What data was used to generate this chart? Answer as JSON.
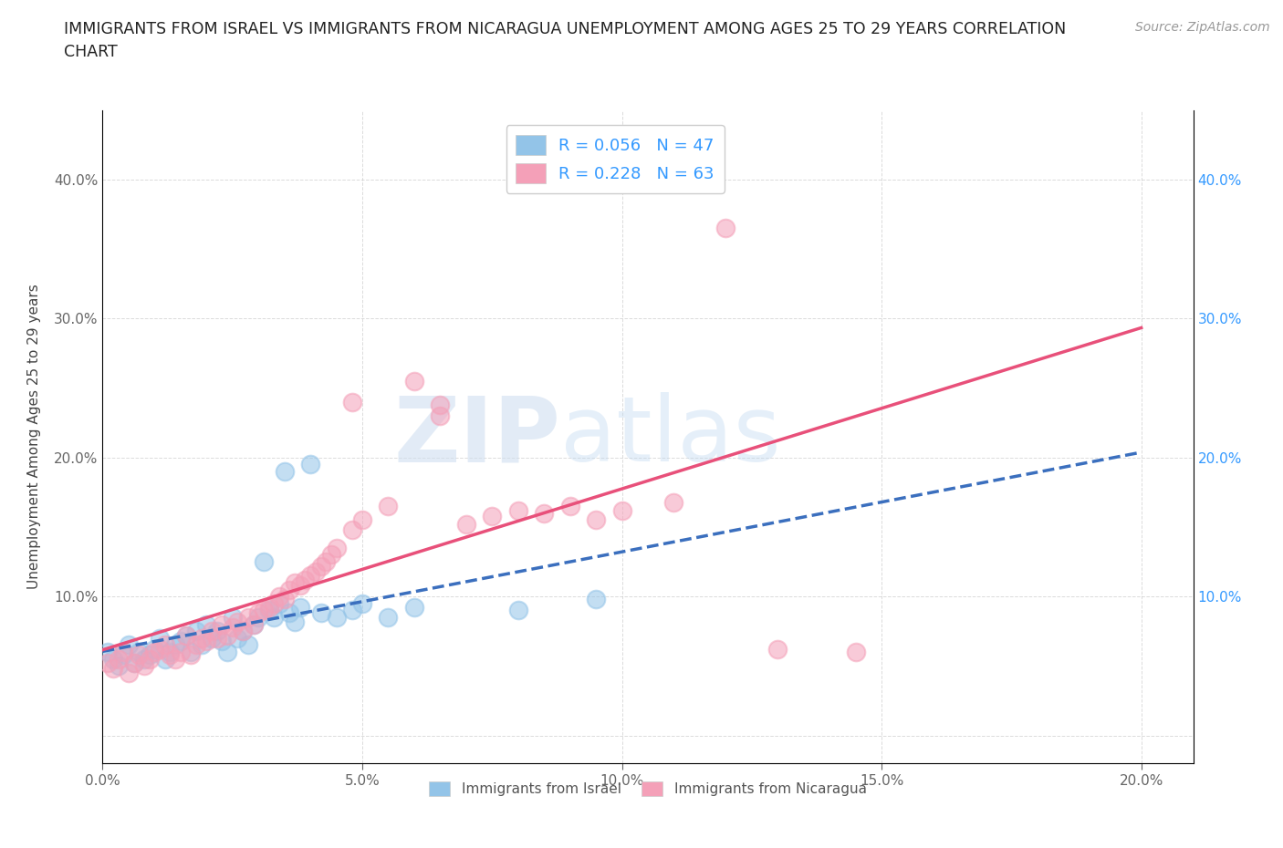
{
  "title": "IMMIGRANTS FROM ISRAEL VS IMMIGRANTS FROM NICARAGUA UNEMPLOYMENT AMONG AGES 25 TO 29 YEARS CORRELATION\nCHART",
  "source": "Source: ZipAtlas.com",
  "ylabel": "Unemployment Among Ages 25 to 29 years",
  "watermark_zip": "ZIP",
  "watermark_atlas": "atlas",
  "xlim": [
    0.0,
    0.21
  ],
  "ylim": [
    -0.02,
    0.45
  ],
  "xticks": [
    0.0,
    0.05,
    0.1,
    0.15,
    0.2
  ],
  "yticks": [
    0.0,
    0.1,
    0.2,
    0.3,
    0.4
  ],
  "xtick_labels": [
    "0.0%",
    "5.0%",
    "10.0%",
    "15.0%",
    "20.0%"
  ],
  "ytick_labels_left": [
    "",
    "10.0%",
    "20.0%",
    "30.0%",
    "40.0%"
  ],
  "ytick_labels_right": [
    "",
    "10.0%",
    "20.0%",
    "30.0%",
    "40.0%"
  ],
  "legend_label_1": "Immigrants from Israel",
  "legend_label_2": "Immigrants from Nicaragua",
  "israel_color": "#93c4e8",
  "nicaragua_color": "#f4a0b8",
  "israel_line_color": "#3b6fbe",
  "nicaragua_line_color": "#e8507a",
  "R_israel": 0.056,
  "N_israel": 47,
  "R_nicaragua": 0.228,
  "N_nicaragua": 63,
  "background_color": "#ffffff",
  "grid_color": "#cccccc",
  "title_color": "#222222",
  "axis_label_color": "#444444",
  "tick_color": "#666666",
  "right_tick_color": "#3399ff",
  "israel_scatter": {
    "x": [
      0.001,
      0.002,
      0.003,
      0.004,
      0.005,
      0.006,
      0.007,
      0.008,
      0.009,
      0.01,
      0.011,
      0.012,
      0.013,
      0.014,
      0.015,
      0.016,
      0.017,
      0.018,
      0.019,
      0.02,
      0.021,
      0.022,
      0.023,
      0.024,
      0.025,
      0.026,
      0.027,
      0.028,
      0.029,
      0.03,
      0.031,
      0.032,
      0.033,
      0.034,
      0.035,
      0.036,
      0.037,
      0.038,
      0.04,
      0.042,
      0.045,
      0.048,
      0.05,
      0.055,
      0.06,
      0.08,
      0.095
    ],
    "y": [
      0.06,
      0.055,
      0.05,
      0.058,
      0.065,
      0.052,
      0.06,
      0.055,
      0.058,
      0.062,
      0.07,
      0.055,
      0.06,
      0.065,
      0.068,
      0.072,
      0.06,
      0.075,
      0.065,
      0.08,
      0.07,
      0.075,
      0.068,
      0.06,
      0.085,
      0.07,
      0.075,
      0.065,
      0.08,
      0.085,
      0.125,
      0.09,
      0.085,
      0.095,
      0.19,
      0.088,
      0.082,
      0.092,
      0.195,
      0.088,
      0.085,
      0.09,
      0.095,
      0.085,
      0.092,
      0.09,
      0.098
    ]
  },
  "nicaragua_scatter": {
    "x": [
      0.001,
      0.002,
      0.003,
      0.004,
      0.005,
      0.006,
      0.007,
      0.008,
      0.009,
      0.01,
      0.011,
      0.012,
      0.013,
      0.014,
      0.015,
      0.016,
      0.017,
      0.018,
      0.019,
      0.02,
      0.021,
      0.022,
      0.023,
      0.024,
      0.025,
      0.026,
      0.027,
      0.028,
      0.029,
      0.03,
      0.031,
      0.032,
      0.033,
      0.034,
      0.035,
      0.036,
      0.037,
      0.038,
      0.039,
      0.04,
      0.041,
      0.042,
      0.043,
      0.044,
      0.045,
      0.048,
      0.05,
      0.055,
      0.06,
      0.065,
      0.07,
      0.075,
      0.08,
      0.085,
      0.09,
      0.095,
      0.1,
      0.11,
      0.12,
      0.145,
      0.048,
      0.065,
      0.13
    ],
    "y": [
      0.052,
      0.048,
      0.055,
      0.06,
      0.045,
      0.052,
      0.058,
      0.05,
      0.055,
      0.06,
      0.062,
      0.065,
      0.058,
      0.055,
      0.06,
      0.072,
      0.058,
      0.065,
      0.07,
      0.068,
      0.075,
      0.07,
      0.08,
      0.072,
      0.078,
      0.082,
      0.075,
      0.085,
      0.08,
      0.088,
      0.09,
      0.092,
      0.095,
      0.1,
      0.098,
      0.105,
      0.11,
      0.108,
      0.112,
      0.115,
      0.118,
      0.122,
      0.125,
      0.13,
      0.135,
      0.148,
      0.155,
      0.165,
      0.255,
      0.23,
      0.152,
      0.158,
      0.162,
      0.16,
      0.165,
      0.155,
      0.162,
      0.168,
      0.365,
      0.06,
      0.24,
      0.238,
      0.062
    ]
  },
  "israel_line_xlim": [
    0.0,
    0.2
  ],
  "nicaragua_line_xlim": [
    0.0,
    0.2
  ]
}
